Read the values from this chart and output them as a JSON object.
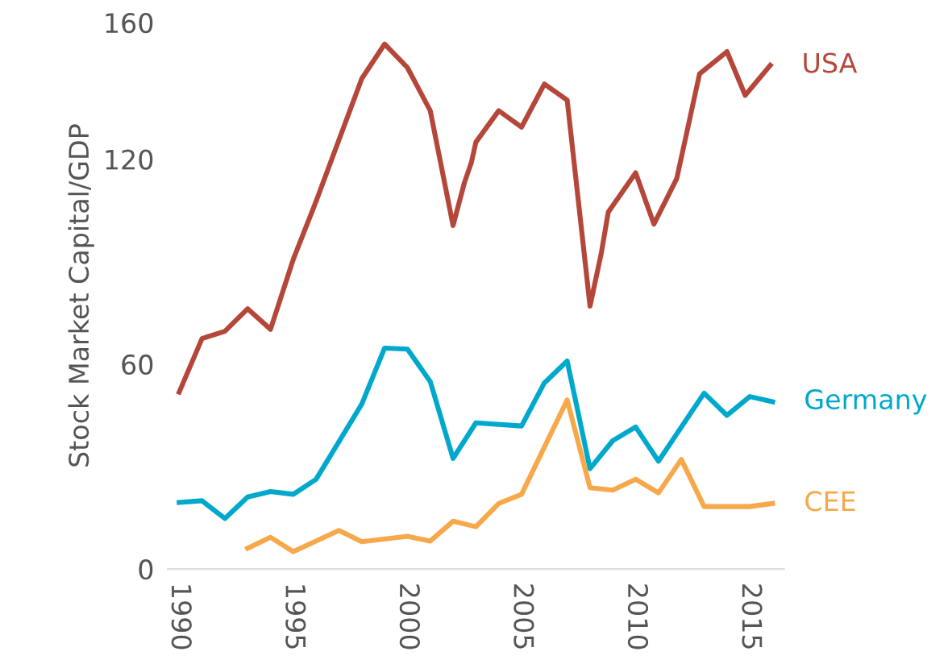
{
  "chart_data": {
    "type": "line",
    "ylabel": "Stock Market Capital/GDP",
    "xlim": [
      1989.5,
      2016.5
    ],
    "xticks": [
      1990,
      1995,
      2000,
      2005,
      2010,
      2015
    ],
    "ylim": [
      0,
      160
    ],
    "yticks": [
      0,
      60,
      120,
      160
    ],
    "grid": false,
    "legend": false,
    "marker": "none",
    "line_style": "solid",
    "series": [
      {
        "name": "USA",
        "color": "#b5473a",
        "x": [
          1990,
          1991,
          1992,
          1993,
          1994,
          1995,
          1996,
          1998,
          1999,
          2000,
          2001,
          2002,
          2002.5,
          2002.8,
          2003,
          2004,
          2005,
          2006,
          2007,
          2008,
          2008.5,
          2008.8,
          2010,
          2010.8,
          2011.8,
          2012.8,
          2014,
          2014.8,
          2015.9
        ],
        "values": [
          51.8,
          67.5,
          69.6,
          76.2,
          70.2,
          90.7,
          107.7,
          143.6,
          153.7,
          146.8,
          134.2,
          100.6,
          113.2,
          119,
          125,
          134.2,
          129.4,
          142,
          137.3,
          77,
          92.7,
          104.5,
          116,
          101,
          114.3,
          145,
          151.5,
          138.7,
          147.5
        ]
      },
      {
        "name": "Germany",
        "color": "#00a8cc",
        "x": [
          1990,
          1991,
          1992,
          1993,
          1994,
          1995,
          1996,
          1998,
          1999,
          2000,
          2001,
          2002,
          2003,
          2005,
          2006,
          2007,
          2008,
          2009,
          2010,
          2011,
          2013,
          2014,
          2015,
          2016
        ],
        "values": [
          19.5,
          20,
          14.8,
          21.1,
          22.7,
          21.9,
          26.3,
          48.3,
          64.7,
          64.4,
          54.9,
          32.4,
          42.8,
          41.9,
          54.5,
          60.9,
          29.4,
          37.6,
          41.6,
          31.6,
          51.5,
          45,
          50.5,
          49
        ]
      },
      {
        "name": "CEE",
        "color": "#f7a84a",
        "x": [
          1993,
          1994,
          1995,
          1997,
          1998,
          2000,
          2001,
          2002,
          2003,
          2004,
          2005,
          2007,
          2008,
          2009,
          2010,
          2011,
          2012,
          2013,
          2015,
          2016
        ],
        "values": [
          6.1,
          9.3,
          5.1,
          11.3,
          8,
          9.6,
          8.2,
          14,
          12.4,
          19.2,
          21.9,
          49.5,
          23.8,
          23.1,
          26.3,
          22.3,
          32.1,
          18.3,
          18.3,
          19.2
        ]
      }
    ]
  }
}
